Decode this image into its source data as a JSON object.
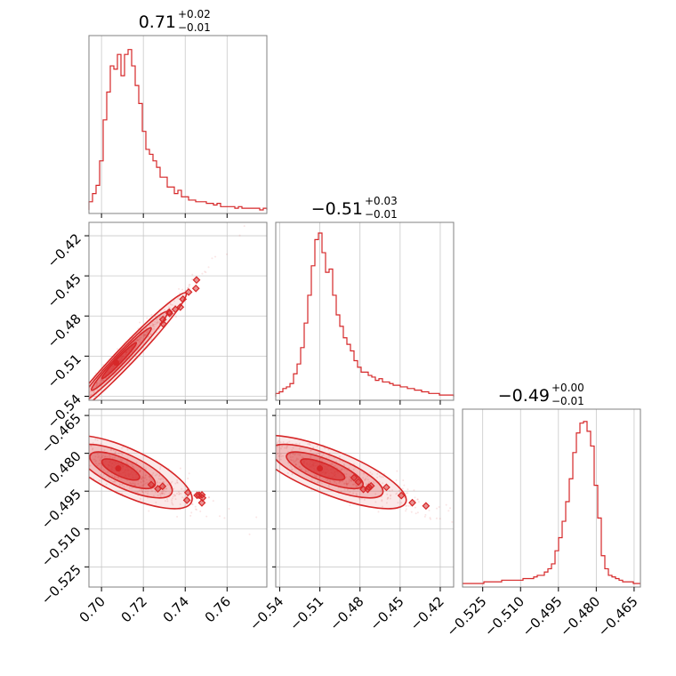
{
  "chart_data": {
    "type": "corner",
    "color": "#d62728",
    "grid": true,
    "parameters": [
      {
        "title_value": "0.71",
        "title_upper": "+0.02",
        "title_lower": "−0.01",
        "range": [
          0.694,
          0.779
        ],
        "ticks": [
          0.7,
          0.72,
          0.74,
          0.76
        ],
        "tick_labels": [
          "0.70",
          "0.72",
          "0.74",
          "0.76"
        ]
      },
      {
        "title_value": "−0.51",
        "title_upper": "+0.03",
        "title_lower": "−0.01",
        "range": [
          -0.543,
          -0.41
        ],
        "ticks": [
          -0.54,
          -0.51,
          -0.48,
          -0.45,
          -0.42
        ],
        "tick_labels": [
          "−0.54",
          "−0.51",
          "−0.48",
          "−0.45",
          "−0.42"
        ]
      },
      {
        "title_value": "−0.49",
        "title_upper": "+0.00",
        "title_lower": "−0.01",
        "range": [
          -0.533,
          -0.4625
        ],
        "ticks": [
          -0.525,
          -0.51,
          -0.495,
          -0.48,
          -0.465
        ],
        "tick_labels": [
          "−0.525",
          "−0.510",
          "−0.495",
          "−0.480",
          "−0.465"
        ]
      }
    ],
    "histograms": [
      {
        "param": 0,
        "values": [
          0.05,
          0.1,
          0.15,
          0.3,
          0.55,
          0.72,
          0.88,
          0.86,
          0.95,
          0.82,
          0.95,
          0.98,
          0.88,
          0.76,
          0.65,
          0.48,
          0.37,
          0.34,
          0.3,
          0.26,
          0.2,
          0.2,
          0.14,
          0.14,
          0.1,
          0.12,
          0.08,
          0.08,
          0.06,
          0.06,
          0.05,
          0.05,
          0.05,
          0.04,
          0.04,
          0.03,
          0.04,
          0.02,
          0.02,
          0.02,
          0.02,
          0.01,
          0.02,
          0.01,
          0.01,
          0.01,
          0.01,
          0.01,
          0.0,
          0.01
        ]
      },
      {
        "param": 1,
        "values": [
          0.02,
          0.03,
          0.05,
          0.06,
          0.08,
          0.14,
          0.2,
          0.3,
          0.45,
          0.62,
          0.8,
          0.96,
          1.0,
          0.88,
          0.76,
          0.78,
          0.62,
          0.5,
          0.43,
          0.36,
          0.32,
          0.28,
          0.22,
          0.18,
          0.15,
          0.15,
          0.13,
          0.12,
          0.1,
          0.11,
          0.09,
          0.09,
          0.08,
          0.07,
          0.07,
          0.06,
          0.06,
          0.05,
          0.05,
          0.04,
          0.04,
          0.03,
          0.03,
          0.02,
          0.02,
          0.02,
          0.01,
          0.01,
          0.01,
          0.01
        ]
      },
      {
        "param": 2,
        "values": [
          0.0,
          0.0,
          0.0,
          0.0,
          0.0,
          0.0,
          0.01,
          0.01,
          0.01,
          0.01,
          0.01,
          0.02,
          0.02,
          0.02,
          0.02,
          0.02,
          0.02,
          0.03,
          0.03,
          0.03,
          0.04,
          0.05,
          0.05,
          0.07,
          0.09,
          0.12,
          0.2,
          0.28,
          0.38,
          0.5,
          0.64,
          0.8,
          0.92,
          0.98,
          0.99,
          0.93,
          0.84,
          0.6,
          0.4,
          0.17,
          0.09,
          0.05,
          0.04,
          0.03,
          0.02,
          0.01,
          0.01,
          0.01,
          0.0,
          0.0
        ]
      }
    ],
    "joint_distributions": [
      {
        "x_param": 0,
        "y_param": 1,
        "center": [
          0.707,
          -0.515
        ],
        "sigma": [
          0.011,
          0.018
        ],
        "correlation": 0.98
      },
      {
        "x_param": 0,
        "y_param": 2,
        "center": [
          0.708,
          -0.486
        ],
        "sigma": [
          0.012,
          0.0055
        ],
        "correlation": -0.75
      },
      {
        "x_param": 1,
        "y_param": 2,
        "center": [
          -0.51,
          -0.486
        ],
        "sigma": [
          0.022,
          0.0055
        ],
        "correlation": -0.78
      }
    ]
  }
}
